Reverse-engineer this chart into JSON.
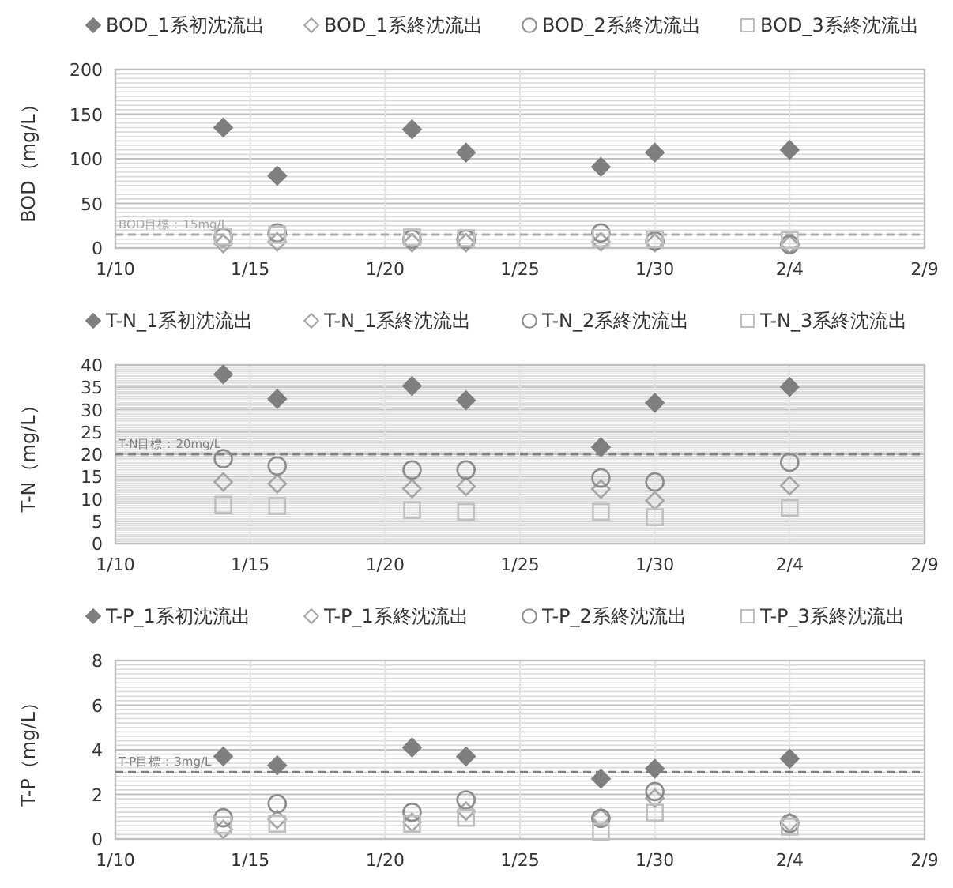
{
  "chart_data": [
    {
      "type": "scatter",
      "ylabel": "BOD（mg/L）",
      "x": [
        "--01-14",
        "--01-16",
        "--01-21",
        "--01-23",
        "--01-28",
        "--01-30",
        "--02-04"
      ],
      "xlim": [
        "--01-10",
        "--02-09"
      ],
      "xticks": [
        {
          "value": "--01-10",
          "label": "1/10"
        },
        {
          "value": "--01-15",
          "label": "1/15"
        },
        {
          "value": "--01-20",
          "label": "1/20"
        },
        {
          "value": "--01-25",
          "label": "1/25"
        },
        {
          "value": "--01-30",
          "label": "1/30"
        },
        {
          "value": "--02-04",
          "label": "2/4"
        },
        {
          "value": "--02-09",
          "label": "2/9"
        }
      ],
      "ylim": [
        0,
        200
      ],
      "yticks": [
        0,
        50,
        100,
        150,
        200
      ],
      "grid": true,
      "legend": "top",
      "ref_lines": [
        {
          "axis": "y",
          "value": 15,
          "label": "BOD目標：15mg/L",
          "color": "#a6a6a6",
          "line_style": "dashed"
        }
      ],
      "series": [
        {
          "name": "BOD_1系初沈流出",
          "color": "#7f7f7f",
          "marker": "diamond",
          "values": [
            135,
            81,
            133,
            107,
            91,
            107,
            110
          ]
        },
        {
          "name": "BOD_1系終沈流出",
          "color": "#a6a6a6",
          "marker": "diamond",
          "values": [
            5,
            7,
            6,
            6,
            7,
            6,
            4
          ]
        },
        {
          "name": "BOD_2系終沈流出",
          "color": "#8c8c8c",
          "marker": "circle",
          "values": [
            12,
            17,
            10,
            10,
            17,
            8,
            4
          ]
        },
        {
          "name": "BOD_3系終沈流出",
          "color": "#bfbfbf",
          "marker": "square",
          "values": [
            13,
            15,
            12,
            11,
            11,
            10,
            9
          ]
        }
      ]
    },
    {
      "type": "scatter",
      "ylabel": "T-N（mg/L）",
      "x": [
        "--01-14",
        "--01-16",
        "--01-21",
        "--01-23",
        "--01-28",
        "--01-30",
        "--02-04"
      ],
      "xlim": [
        "--01-10",
        "--02-09"
      ],
      "xticks": [
        {
          "value": "--01-10",
          "label": "1/10"
        },
        {
          "value": "--01-15",
          "label": "1/15"
        },
        {
          "value": "--01-20",
          "label": "1/20"
        },
        {
          "value": "--01-25",
          "label": "1/25"
        },
        {
          "value": "--01-30",
          "label": "1/30"
        },
        {
          "value": "--02-04",
          "label": "2/4"
        },
        {
          "value": "--02-09",
          "label": "2/9"
        }
      ],
      "ylim": [
        0,
        40
      ],
      "yticks": [
        0,
        5,
        10,
        15,
        20,
        25,
        30,
        35,
        40
      ],
      "grid": true,
      "legend": "top",
      "ref_lines": [
        {
          "axis": "y",
          "value": 20,
          "label": "T-N目標：20mg/L",
          "color": "#808080",
          "line_style": "dashed"
        }
      ],
      "series": [
        {
          "name": "T-N_1系初沈流出",
          "color": "#7f7f7f",
          "marker": "diamond",
          "values": [
            37.9,
            32.4,
            35.3,
            32.1,
            21.6,
            31.5,
            35.1
          ]
        },
        {
          "name": "T-N_1系終沈流出",
          "color": "#a6a6a6",
          "marker": "diamond",
          "values": [
            13.8,
            13.4,
            12.3,
            12.8,
            12.2,
            9.6,
            13
          ]
        },
        {
          "name": "T-N_2系終沈流出",
          "color": "#8c8c8c",
          "marker": "circle",
          "values": [
            19,
            17.4,
            16.5,
            16.5,
            14.7,
            13.8,
            18.2
          ]
        },
        {
          "name": "T-N_3系終沈流出",
          "color": "#bfbfbf",
          "marker": "square",
          "values": [
            8.7,
            8.4,
            7.5,
            7.1,
            7.1,
            5.9,
            8
          ]
        }
      ]
    },
    {
      "type": "scatter",
      "ylabel": "T-P（mg/L）",
      "x": [
        "--01-14",
        "--01-16",
        "--01-21",
        "--01-23",
        "--01-28",
        "--01-30",
        "--02-04"
      ],
      "xlim": [
        "--01-10",
        "--02-09"
      ],
      "xticks": [
        {
          "value": "--01-10",
          "label": "1/10"
        },
        {
          "value": "--01-15",
          "label": "1/15"
        },
        {
          "value": "--01-20",
          "label": "1/20"
        },
        {
          "value": "--01-25",
          "label": "1/25"
        },
        {
          "value": "--01-30",
          "label": "1/30"
        },
        {
          "value": "--02-04",
          "label": "2/4"
        },
        {
          "value": "--02-09",
          "label": "2/9"
        }
      ],
      "ylim": [
        0,
        8
      ],
      "yticks": [
        0,
        2,
        4,
        6,
        8
      ],
      "grid": true,
      "legend": "top",
      "ref_lines": [
        {
          "axis": "y",
          "value": 3,
          "label": "T-P目標：3mg/L",
          "color": "#808080",
          "line_style": "dashed"
        }
      ],
      "series": [
        {
          "name": "T-P_1系初沈流出",
          "color": "#7f7f7f",
          "marker": "diamond",
          "values": [
            3.7,
            3.3,
            4.1,
            3.7,
            2.7,
            3.15,
            3.6
          ]
        },
        {
          "name": "T-P_1系終沈流出",
          "color": "#a6a6a6",
          "marker": "diamond",
          "values": [
            0.43,
            0.88,
            0.75,
            1.25,
            0.95,
            1.83,
            0.75
          ]
        },
        {
          "name": "T-P_2系終沈流出",
          "color": "#8c8c8c",
          "marker": "circle",
          "values": [
            0.95,
            1.58,
            1.2,
            1.75,
            0.93,
            2.13,
            0.7
          ]
        },
        {
          "name": "T-P_3系終沈流出",
          "color": "#bfbfbf",
          "marker": "square",
          "values": [
            0.63,
            0.68,
            0.68,
            0.95,
            0.33,
            1.18,
            0.55
          ]
        }
      ]
    }
  ]
}
